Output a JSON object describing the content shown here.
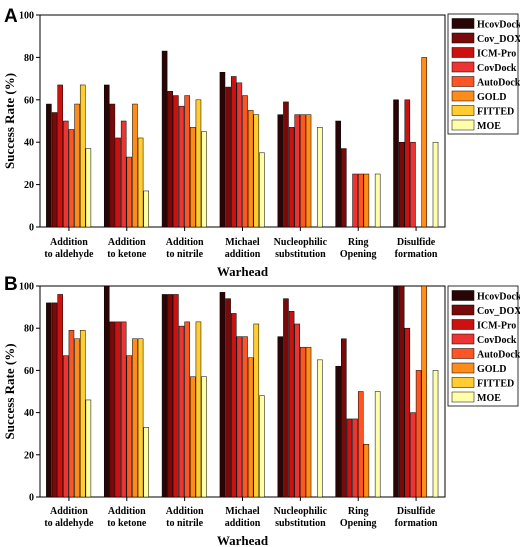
{
  "colors": [
    "#2a0505",
    "#7a0a0a",
    "#cc1111",
    "#ee3333",
    "#ff5522",
    "#ff8c1a",
    "#ffcc33",
    "#ffffaa"
  ],
  "chart_data": [
    {
      "panel": "A",
      "type": "bar",
      "ylabel": "Success Rate (%)",
      "xlabel": "Warhead",
      "ylim": [
        0,
        100
      ],
      "yticks": [
        0,
        20,
        40,
        60,
        80,
        100
      ],
      "grid": false,
      "legend_position": "top-right",
      "categories": [
        [
          "Addition",
          "to aldehyde"
        ],
        [
          "Addition",
          "to ketone"
        ],
        [
          "Addition",
          "to nitrile"
        ],
        [
          "Michael",
          "addition"
        ],
        [
          "Nucleophilic",
          "substitution"
        ],
        [
          "Ring",
          "Opening"
        ],
        [
          "Disulfide",
          "formation"
        ]
      ],
      "series": [
        {
          "name": "HcovDock",
          "values": [
            58,
            67,
            83,
            73,
            53,
            50,
            60
          ]
        },
        {
          "name": "Cov_DOX",
          "values": [
            54,
            58,
            64,
            66,
            59,
            37,
            40
          ]
        },
        {
          "name": "ICM-Pro",
          "values": [
            67,
            42,
            62,
            71,
            47,
            0,
            60
          ]
        },
        {
          "name": "CovDock",
          "values": [
            50,
            50,
            57,
            68,
            53,
            25,
            40
          ]
        },
        {
          "name": "AutoDock",
          "values": [
            46,
            33,
            62,
            62,
            53,
            25,
            0
          ]
        },
        {
          "name": "GOLD",
          "values": [
            58,
            58,
            47,
            55,
            53,
            25,
            80
          ]
        },
        {
          "name": "FITTED",
          "values": [
            67,
            42,
            60,
            53,
            0,
            0,
            0
          ]
        },
        {
          "name": "MOE",
          "values": [
            37,
            17,
            45,
            35,
            47,
            25,
            40
          ]
        }
      ]
    },
    {
      "panel": "B",
      "type": "bar",
      "ylabel": "Success Rate (%)",
      "xlabel": "Warhead",
      "ylim": [
        0,
        100
      ],
      "yticks": [
        0,
        20,
        40,
        60,
        80,
        100
      ],
      "grid": false,
      "legend_position": "top-right",
      "categories": [
        [
          "Addition",
          "to aldehyde"
        ],
        [
          "Addition",
          "to ketone"
        ],
        [
          "Addition",
          "to nitrile"
        ],
        [
          "Michael",
          "addition"
        ],
        [
          "Nucleophilic",
          "substitution"
        ],
        [
          "Ring",
          "Opening"
        ],
        [
          "Disulfide",
          "formation"
        ]
      ],
      "series": [
        {
          "name": "HcovDock",
          "values": [
            92,
            100,
            96,
            97,
            76,
            62,
            100
          ]
        },
        {
          "name": "Cov_DOX",
          "values": [
            92,
            83,
            96,
            94,
            94,
            75,
            100
          ]
        },
        {
          "name": "ICM-Pro",
          "values": [
            96,
            83,
            96,
            87,
            88,
            37,
            80
          ]
        },
        {
          "name": "CovDock",
          "values": [
            67,
            83,
            81,
            76,
            82,
            37,
            40
          ]
        },
        {
          "name": "AutoDock",
          "values": [
            79,
            67,
            83,
            76,
            71,
            50,
            60
          ]
        },
        {
          "name": "GOLD",
          "values": [
            75,
            75,
            57,
            66,
            71,
            25,
            100
          ]
        },
        {
          "name": "FITTED",
          "values": [
            79,
            75,
            83,
            82,
            0,
            0,
            0
          ]
        },
        {
          "name": "MOE",
          "values": [
            46,
            33,
            57,
            48,
            65,
            50,
            60
          ]
        }
      ]
    }
  ]
}
